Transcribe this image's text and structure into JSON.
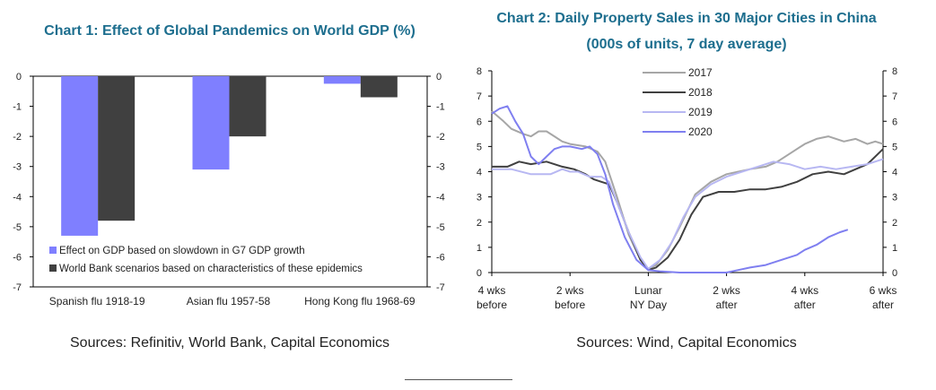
{
  "chart_data": [
    {
      "type": "bar",
      "title": "Chart 1: Effect of Global Pandemics on World GDP (%)",
      "categories": [
        "Spanish flu 1918-19",
        "Asian flu 1957-58",
        "Hong Kong flu 1968-69"
      ],
      "series": [
        {
          "name": "Effect on GDP based on slowdown in G7 GDP growth",
          "color": "#7f7fff",
          "values": [
            -5.3,
            -3.1,
            -0.25
          ]
        },
        {
          "name": "World Bank scenarios based on characteristics of these epidemics",
          "color": "#404040",
          "values": [
            -4.8,
            -2.0,
            -0.7
          ]
        }
      ],
      "ylim": [
        -7,
        0
      ],
      "yticks": [
        0,
        -1,
        -2,
        -3,
        -4,
        -5,
        -6,
        -7
      ],
      "legend_position": "bottom-left",
      "source": "Sources: Refinitiv, World Bank, Capital Economics"
    },
    {
      "type": "line",
      "title": "Chart 2: Daily Property Sales in 30 Major Cities in China",
      "subtitle": "(000s of units, 7 day average)",
      "x_range": [
        -4,
        6
      ],
      "xticks": [
        {
          "x": -4,
          "line1": "4 wks",
          "line2": "before"
        },
        {
          "x": -2,
          "line1": "2 wks",
          "line2": "before"
        },
        {
          "x": 0,
          "line1": "Lunar",
          "line2": "NY Day"
        },
        {
          "x": 2,
          "line1": "2 wks",
          "line2": "after"
        },
        {
          "x": 4,
          "line1": "4 wks",
          "line2": "after"
        },
        {
          "x": 6,
          "line1": "6 wks",
          "line2": "after"
        }
      ],
      "ylim": [
        0,
        8
      ],
      "yticks": [
        0,
        1,
        2,
        3,
        4,
        5,
        6,
        7,
        8
      ],
      "legend_position": "top-center",
      "series": [
        {
          "name": "2017",
          "color": "#a6a6a6",
          "points": [
            [
              -4,
              6.4
            ],
            [
              -3.7,
              6.0
            ],
            [
              -3.5,
              5.7
            ],
            [
              -3.2,
              5.5
            ],
            [
              -3.0,
              5.4
            ],
            [
              -2.8,
              5.6
            ],
            [
              -2.6,
              5.6
            ],
            [
              -2.4,
              5.4
            ],
            [
              -2.2,
              5.2
            ],
            [
              -2.0,
              5.1
            ],
            [
              -1.6,
              5.0
            ],
            [
              -1.3,
              4.8
            ],
            [
              -1.1,
              4.4
            ],
            [
              -0.8,
              3.0
            ],
            [
              -0.5,
              1.5
            ],
            [
              -0.2,
              0.5
            ],
            [
              0,
              0.15
            ],
            [
              0.2,
              0.3
            ],
            [
              0.5,
              0.9
            ],
            [
              0.8,
              1.8
            ],
            [
              1.2,
              3.1
            ],
            [
              1.6,
              3.6
            ],
            [
              2.0,
              3.9
            ],
            [
              2.3,
              4.0
            ],
            [
              2.6,
              4.1
            ],
            [
              3.0,
              4.2
            ],
            [
              3.3,
              4.4
            ],
            [
              3.6,
              4.7
            ],
            [
              4.0,
              5.1
            ],
            [
              4.3,
              5.3
            ],
            [
              4.6,
              5.4
            ],
            [
              5.0,
              5.2
            ],
            [
              5.3,
              5.3
            ],
            [
              5.6,
              5.1
            ],
            [
              5.8,
              5.2
            ],
            [
              6.0,
              5.1
            ]
          ]
        },
        {
          "name": "2018",
          "color": "#404040",
          "points": [
            [
              -4,
              4.2
            ],
            [
              -3.6,
              4.2
            ],
            [
              -3.3,
              4.4
            ],
            [
              -3.0,
              4.3
            ],
            [
              -2.6,
              4.4
            ],
            [
              -2.2,
              4.2
            ],
            [
              -1.9,
              4.1
            ],
            [
              -1.6,
              3.9
            ],
            [
              -1.4,
              3.7
            ],
            [
              -1.2,
              3.6
            ],
            [
              -1.0,
              3.5
            ],
            [
              -0.8,
              2.8
            ],
            [
              -0.5,
              1.6
            ],
            [
              -0.2,
              0.5
            ],
            [
              0,
              0.1
            ],
            [
              0.2,
              0.2
            ],
            [
              0.5,
              0.6
            ],
            [
              0.8,
              1.3
            ],
            [
              1.1,
              2.3
            ],
            [
              1.4,
              3.0
            ],
            [
              1.8,
              3.2
            ],
            [
              2.2,
              3.2
            ],
            [
              2.6,
              3.3
            ],
            [
              3.0,
              3.3
            ],
            [
              3.4,
              3.4
            ],
            [
              3.8,
              3.6
            ],
            [
              4.2,
              3.9
            ],
            [
              4.6,
              4.0
            ],
            [
              5.0,
              3.9
            ],
            [
              5.3,
              4.1
            ],
            [
              5.6,
              4.3
            ],
            [
              6.0,
              4.9
            ]
          ]
        },
        {
          "name": "2019",
          "color": "#b7b7f2",
          "points": [
            [
              -4,
              4.1
            ],
            [
              -3.5,
              4.1
            ],
            [
              -3.0,
              3.9
            ],
            [
              -2.5,
              3.9
            ],
            [
              -2.2,
              4.1
            ],
            [
              -2.0,
              4.0
            ],
            [
              -1.8,
              4.0
            ],
            [
              -1.5,
              3.8
            ],
            [
              -1.2,
              3.8
            ],
            [
              -1.0,
              3.6
            ],
            [
              -0.8,
              2.8
            ],
            [
              -0.5,
              1.6
            ],
            [
              -0.2,
              0.6
            ],
            [
              0,
              0.15
            ],
            [
              0.3,
              0.5
            ],
            [
              0.6,
              1.2
            ],
            [
              0.9,
              2.2
            ],
            [
              1.2,
              3.0
            ],
            [
              1.6,
              3.5
            ],
            [
              2.0,
              3.8
            ],
            [
              2.4,
              4.0
            ],
            [
              2.8,
              4.2
            ],
            [
              3.2,
              4.4
            ],
            [
              3.6,
              4.3
            ],
            [
              4.0,
              4.1
            ],
            [
              4.4,
              4.2
            ],
            [
              4.8,
              4.1
            ],
            [
              5.2,
              4.2
            ],
            [
              5.6,
              4.3
            ],
            [
              6.0,
              4.5
            ]
          ]
        },
        {
          "name": "2020",
          "color": "#7f7ff0",
          "points": [
            [
              -4,
              6.3
            ],
            [
              -3.8,
              6.5
            ],
            [
              -3.6,
              6.6
            ],
            [
              -3.4,
              6.0
            ],
            [
              -3.2,
              5.5
            ],
            [
              -3.0,
              4.6
            ],
            [
              -2.8,
              4.3
            ],
            [
              -2.6,
              4.6
            ],
            [
              -2.4,
              4.9
            ],
            [
              -2.2,
              5.0
            ],
            [
              -2.0,
              5.0
            ],
            [
              -1.7,
              4.9
            ],
            [
              -1.5,
              5.0
            ],
            [
              -1.3,
              4.7
            ],
            [
              -1.1,
              3.9
            ],
            [
              -0.9,
              2.7
            ],
            [
              -0.6,
              1.4
            ],
            [
              -0.3,
              0.5
            ],
            [
              0,
              0.1
            ],
            [
              0.3,
              0.05
            ],
            [
              0.8,
              0.0
            ],
            [
              1.2,
              0.0
            ],
            [
              1.6,
              0.0
            ],
            [
              2.0,
              0.0
            ],
            [
              2.3,
              0.1
            ],
            [
              2.6,
              0.2
            ],
            [
              3.0,
              0.3
            ],
            [
              3.4,
              0.5
            ],
            [
              3.8,
              0.7
            ],
            [
              4.0,
              0.9
            ],
            [
              4.3,
              1.1
            ],
            [
              4.6,
              1.4
            ],
            [
              4.9,
              1.6
            ],
            [
              5.1,
              1.7
            ]
          ]
        }
      ],
      "source": "Sources: Wind, Capital Economics"
    }
  ]
}
